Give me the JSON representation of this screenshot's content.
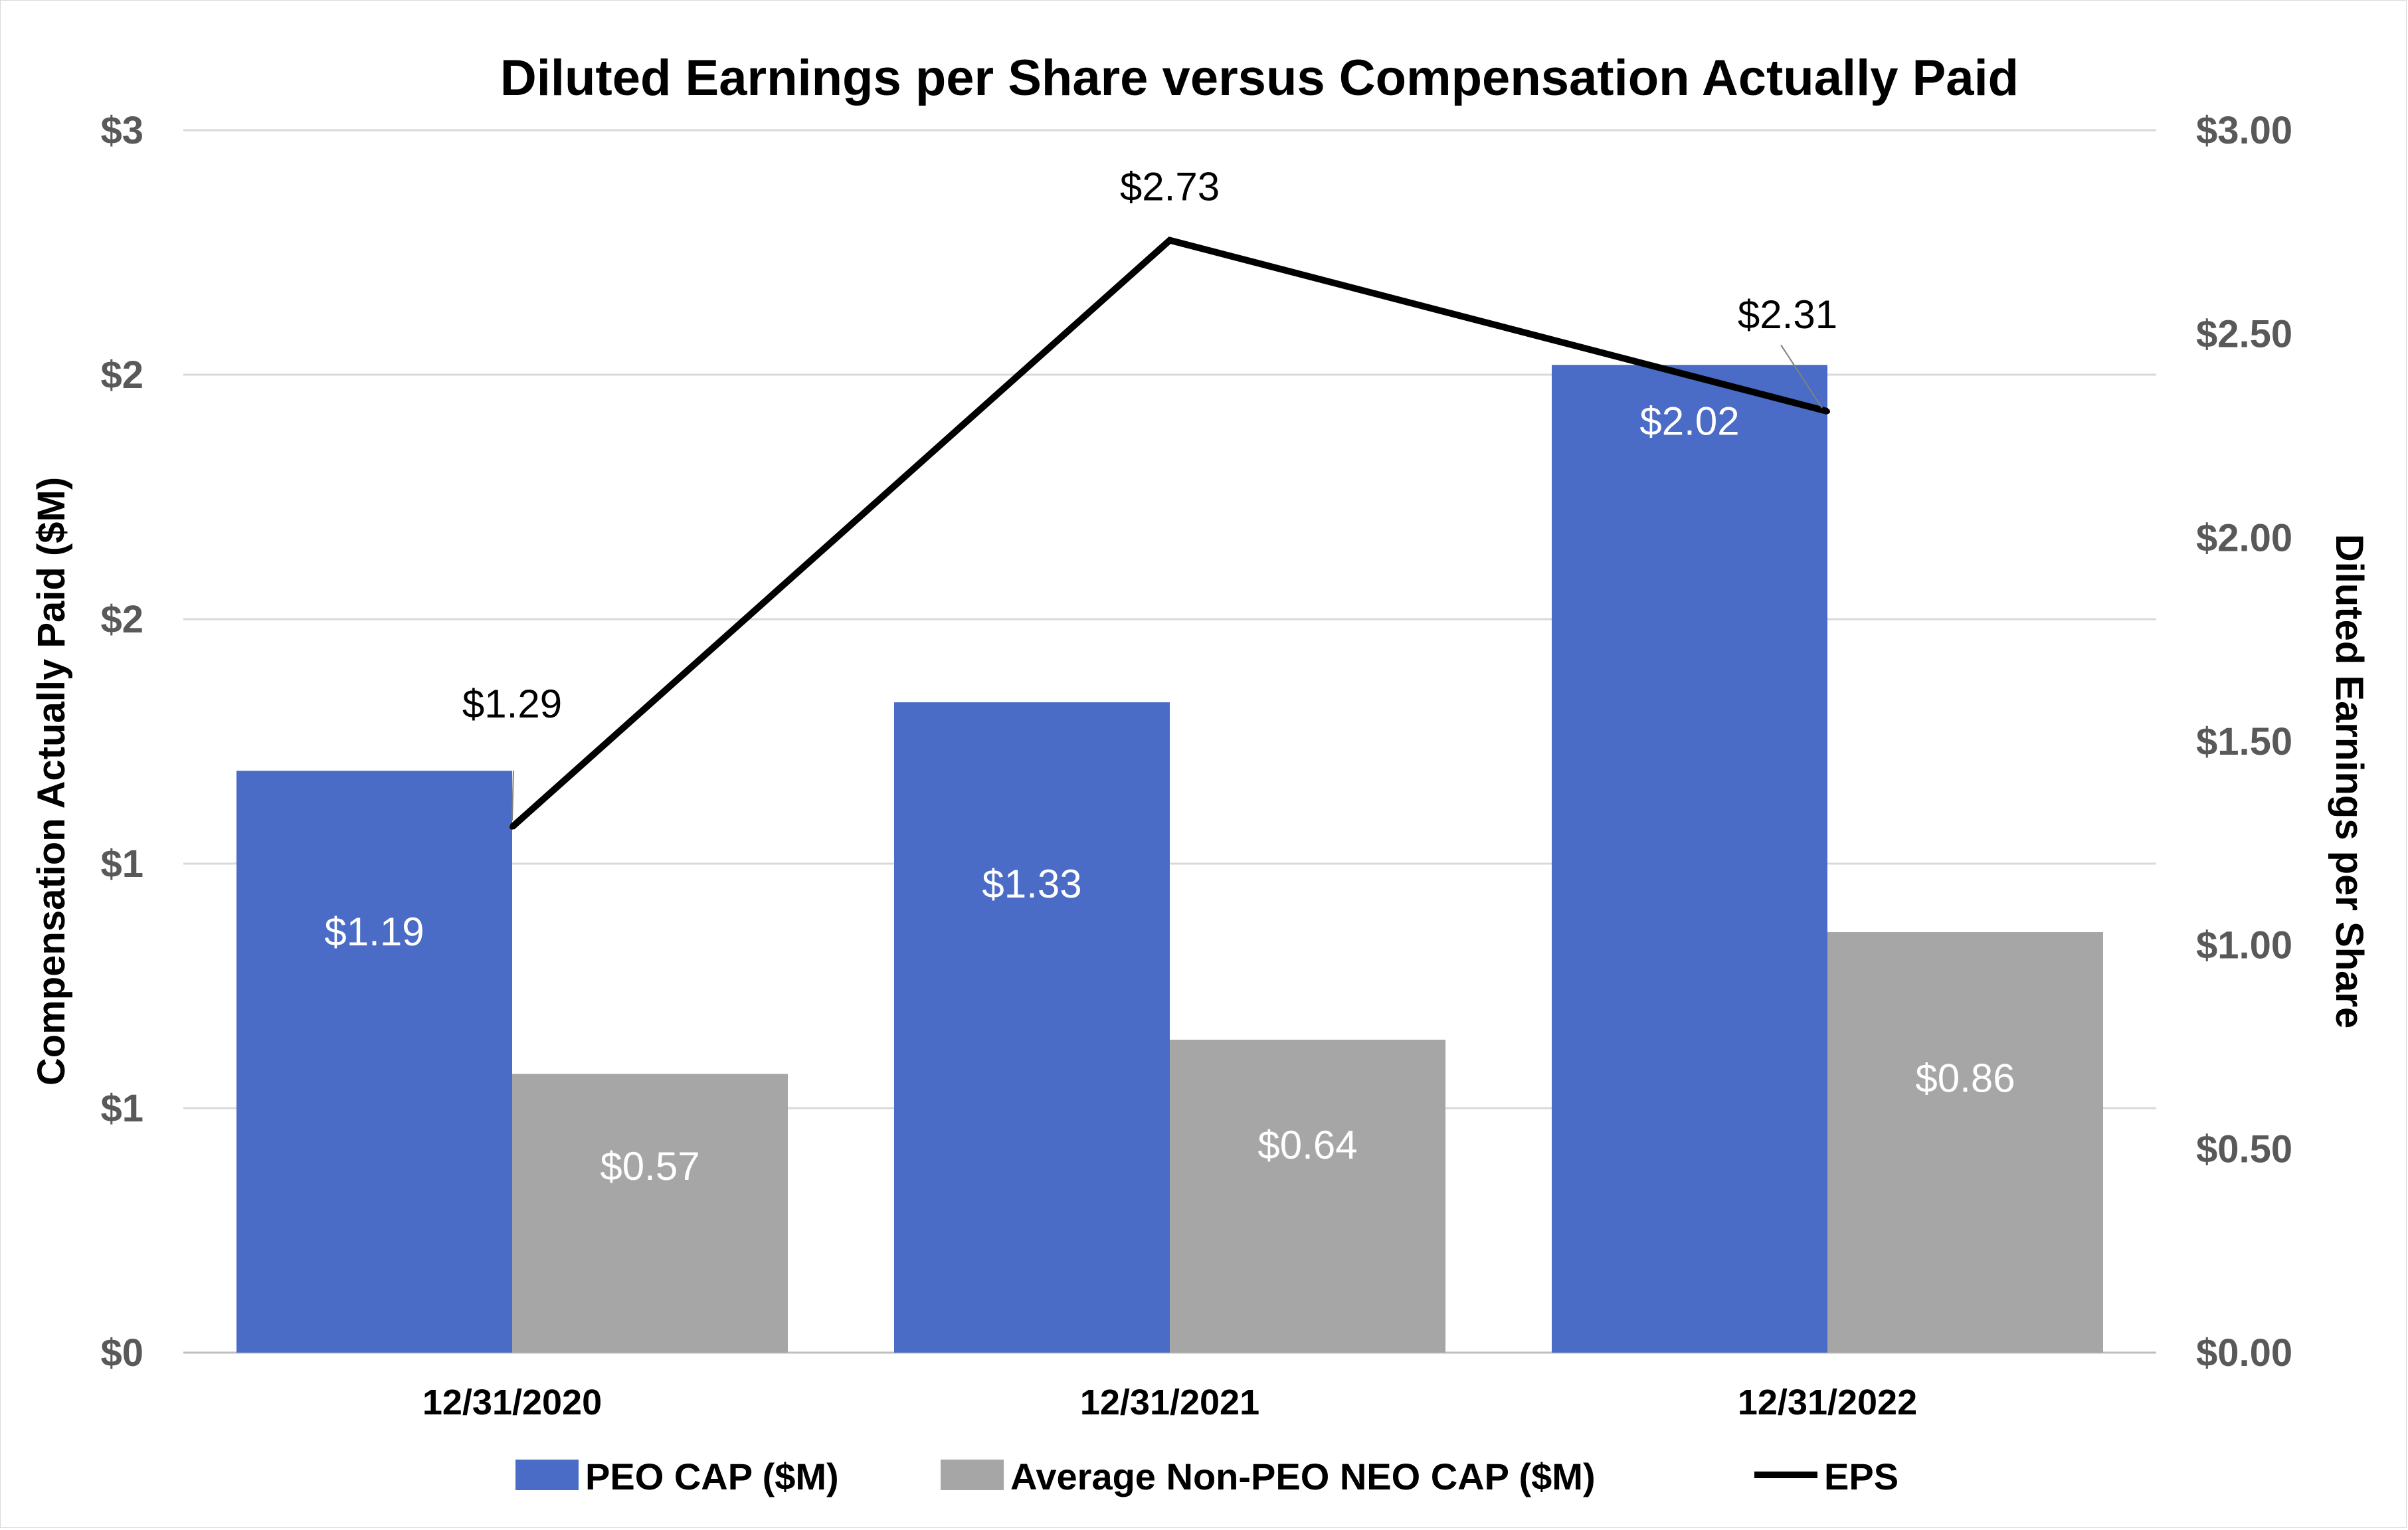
{
  "chart_data": {
    "type": "bar",
    "title": "Diluted Earnings per Share versus Compensation Actually Paid",
    "categories": [
      "12/31/2020",
      "12/31/2021",
      "12/31/2022"
    ],
    "series": [
      {
        "name": "PEO CAP ($M)",
        "kind": "bar",
        "axis": "left",
        "color": "#4a6bc6",
        "values": [
          1.19,
          1.33,
          2.02
        ],
        "labels": [
          "$1.19",
          "$1.33",
          "$2.02"
        ]
      },
      {
        "name": "Average Non-PEO NEO CAP ($M)",
        "kind": "bar",
        "axis": "left",
        "color": "#a6a6a6",
        "values": [
          0.57,
          0.64,
          0.86
        ],
        "labels": [
          "$0.57",
          "$0.64",
          "$0.86"
        ]
      },
      {
        "name": "EPS",
        "kind": "line",
        "axis": "right",
        "color": "#000000",
        "values": [
          1.29,
          2.73,
          2.31
        ],
        "labels": [
          "$1.29",
          "$2.73",
          "$2.31"
        ]
      }
    ],
    "left_axis": {
      "label": "Compensation Actually Paid ($M)",
      "ylim": [
        0,
        2.5
      ],
      "ticks": [
        0,
        0.5,
        1,
        1.5,
        2,
        2.5
      ],
      "tick_labels": [
        "$0",
        "$1",
        "$1",
        "$2",
        "$2",
        "$3"
      ]
    },
    "right_axis": {
      "label": "Diluted Earnings per Share",
      "ylim": [
        0,
        3.0
      ],
      "ticks": [
        0,
        0.5,
        1.0,
        1.5,
        2.0,
        2.5,
        3.0
      ],
      "tick_labels": [
        "$0.00",
        "$0.50",
        "$1.00",
        "$1.50",
        "$2.00",
        "$2.50",
        "$3.00"
      ]
    },
    "grid": true,
    "legend": {
      "position": "bottom",
      "entries": [
        "PEO CAP ($M)",
        "Average Non-PEO NEO CAP ($M)",
        "EPS"
      ]
    }
  }
}
